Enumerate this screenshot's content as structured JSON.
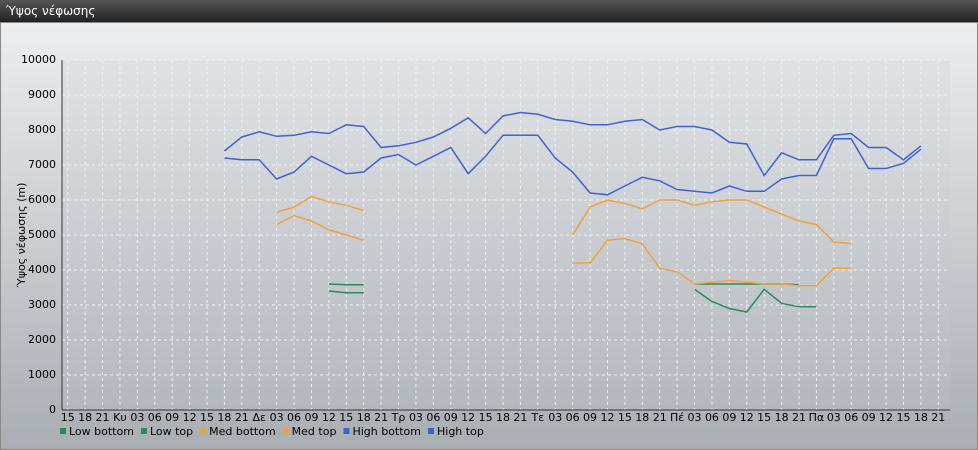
{
  "chart_data": {
    "type": "line",
    "title": "Ύψος νέφωσης",
    "y_label": "Ύψος νέφωσης (m)",
    "categories": [
      "15",
      "18",
      "21",
      "Κυ",
      "03",
      "06",
      "09",
      "12",
      "15",
      "18",
      "21",
      "Δε",
      "03",
      "06",
      "09",
      "12",
      "15",
      "18",
      "21",
      "Τρ",
      "03",
      "06",
      "09",
      "12",
      "15",
      "18",
      "21",
      "Τε",
      "03",
      "06",
      "09",
      "12",
      "15",
      "18",
      "21",
      "Πέ",
      "03",
      "06",
      "09",
      "12",
      "15",
      "18",
      "21",
      "Πα",
      "03",
      "06",
      "09",
      "12",
      "15",
      "18",
      "21"
    ],
    "ylim": [
      0,
      10000
    ],
    "yticks": [
      0,
      1000,
      2000,
      3000,
      4000,
      5000,
      6000,
      7000,
      8000,
      9000,
      10000
    ],
    "grid": true,
    "series": [
      {
        "name": "Low bottom",
        "color": "#2a8a5a",
        "values": [
          null,
          null,
          null,
          null,
          null,
          null,
          null,
          null,
          null,
          null,
          null,
          null,
          null,
          null,
          null,
          3400,
          3350,
          3350,
          null,
          null,
          null,
          null,
          null,
          null,
          null,
          null,
          null,
          null,
          null,
          null,
          null,
          null,
          null,
          null,
          null,
          null,
          3450,
          3100,
          2900,
          2800,
          3450,
          3050,
          2950,
          2950,
          null,
          null,
          null,
          null,
          null,
          null,
          null
        ]
      },
      {
        "name": "Low top",
        "color": "#2a8a5a",
        "values": [
          null,
          null,
          null,
          null,
          null,
          null,
          null,
          null,
          null,
          null,
          null,
          null,
          null,
          null,
          null,
          3600,
          3580,
          3580,
          null,
          null,
          null,
          null,
          null,
          null,
          null,
          null,
          null,
          null,
          null,
          null,
          null,
          null,
          null,
          null,
          null,
          null,
          3600,
          3600,
          3600,
          3600,
          3600,
          3600,
          3580,
          null,
          null,
          null,
          null,
          null,
          null,
          null,
          null
        ]
      },
      {
        "name": "Med bottom",
        "color": "#f0a040",
        "values": [
          null,
          null,
          null,
          null,
          null,
          null,
          null,
          null,
          null,
          null,
          null,
          null,
          5300,
          5550,
          5400,
          5150,
          5000,
          4850,
          null,
          null,
          null,
          null,
          null,
          null,
          null,
          null,
          null,
          null,
          null,
          4200,
          4200,
          4850,
          4900,
          4750,
          4050,
          3950,
          3600,
          3650,
          3700,
          3650,
          3600,
          3600,
          3550,
          3550,
          4050,
          4050,
          null,
          null,
          null,
          null,
          null
        ]
      },
      {
        "name": "Med top",
        "color": "#f0a040",
        "values": [
          null,
          null,
          null,
          null,
          null,
          null,
          null,
          null,
          null,
          null,
          null,
          null,
          5650,
          5800,
          6100,
          5950,
          5850,
          5700,
          null,
          null,
          null,
          null,
          null,
          null,
          null,
          null,
          null,
          null,
          null,
          5000,
          5800,
          6000,
          5900,
          5750,
          6000,
          6000,
          5850,
          5950,
          6000,
          6000,
          5800,
          5600,
          5400,
          5300,
          4800,
          4750,
          null,
          null,
          null,
          null,
          null
        ]
      },
      {
        "name": "High bottom",
        "color": "#3f62d0",
        "values": [
          null,
          null,
          null,
          null,
          null,
          null,
          null,
          null,
          null,
          7200,
          7150,
          7150,
          6600,
          6800,
          7250,
          7000,
          6750,
          6800,
          7200,
          7300,
          7000,
          7250,
          7500,
          6750,
          7250,
          7850,
          7850,
          7850,
          7200,
          6800,
          6200,
          6150,
          6400,
          6650,
          6550,
          6300,
          6250,
          6200,
          6400,
          6250,
          6250,
          6600,
          6700,
          6700,
          7750,
          7750,
          6900,
          6900,
          7050,
          7450,
          null
        ]
      },
      {
        "name": "High top",
        "color": "#3f62d0",
        "values": [
          null,
          null,
          null,
          null,
          null,
          null,
          null,
          null,
          null,
          7400,
          7800,
          7950,
          7820,
          7850,
          7950,
          7900,
          8150,
          8100,
          7500,
          7550,
          7650,
          7800,
          8050,
          8350,
          7900,
          8400,
          8500,
          8450,
          8300,
          8250,
          8150,
          8150,
          8250,
          8300,
          8000,
          8100,
          8100,
          8000,
          7650,
          7600,
          6700,
          7350,
          7150,
          7150,
          7850,
          7900,
          7500,
          7500,
          7150,
          7550,
          null
        ]
      }
    ]
  }
}
